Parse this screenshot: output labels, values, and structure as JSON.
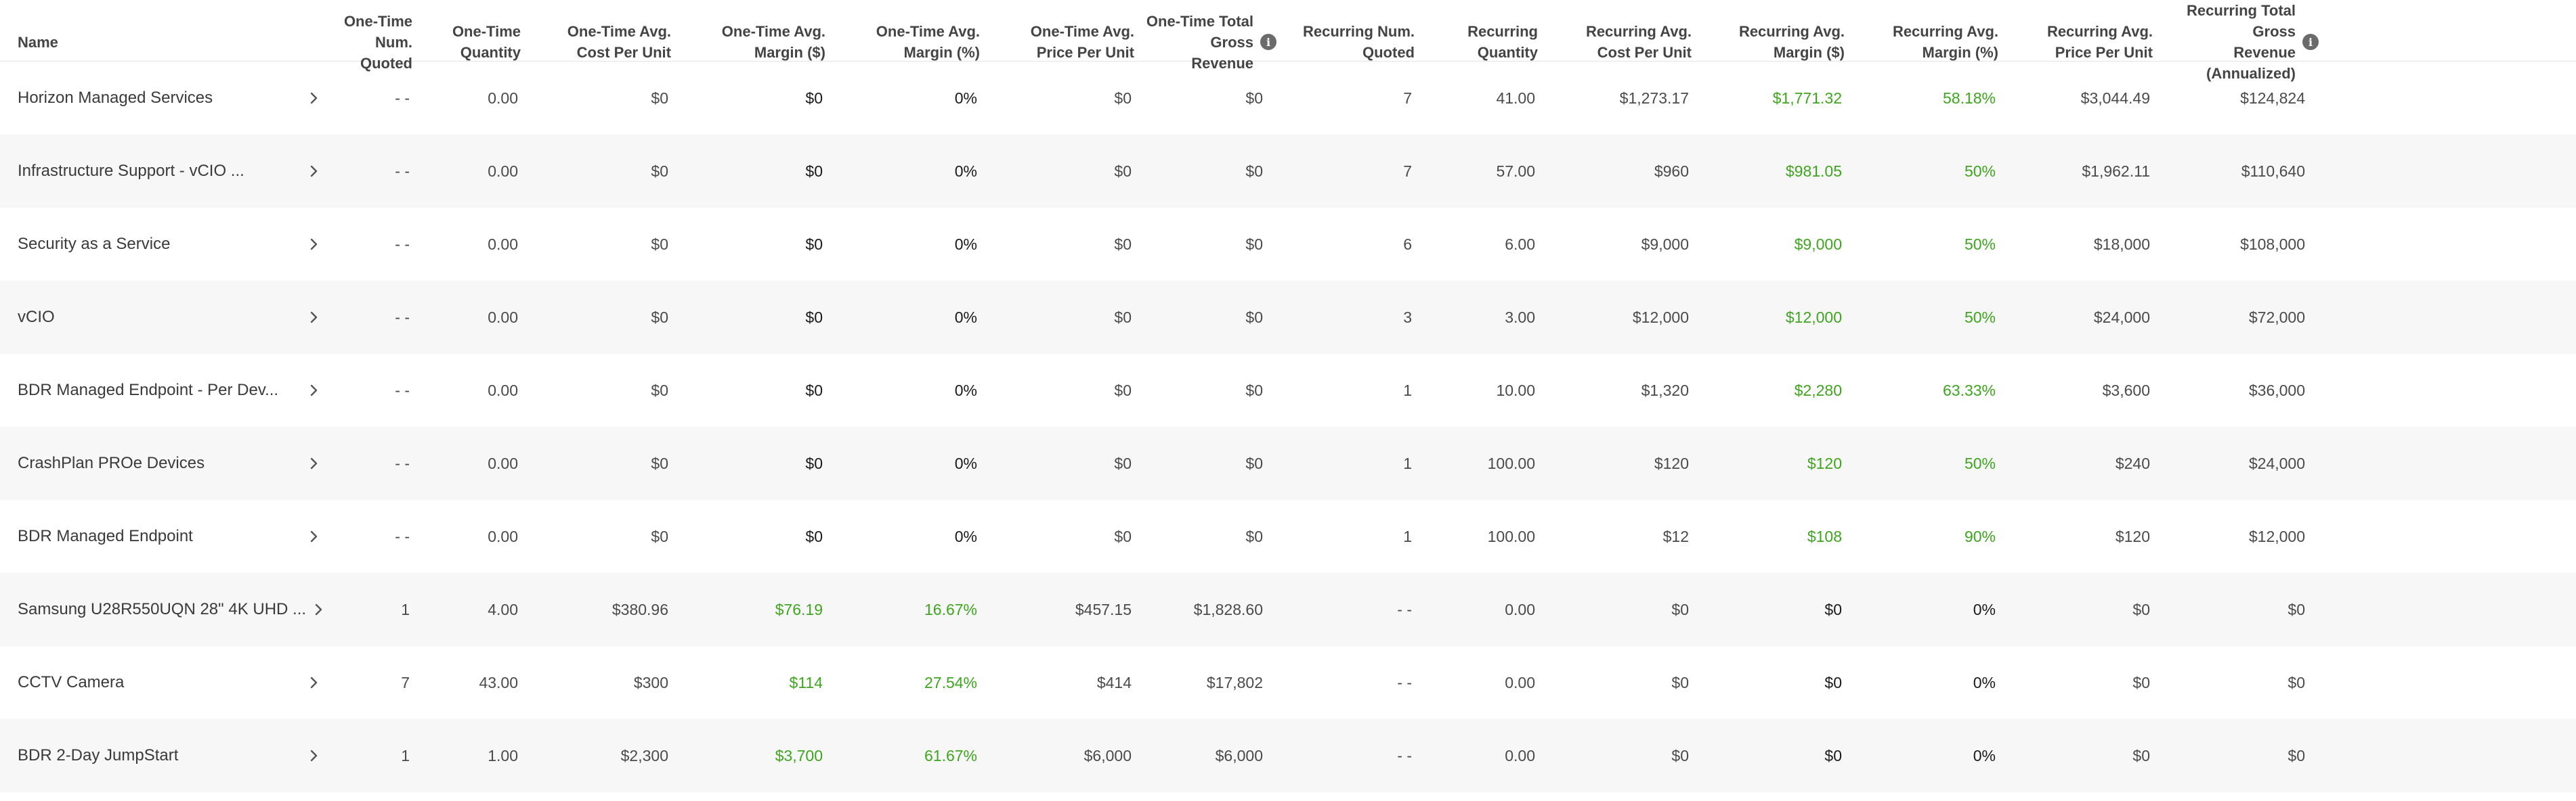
{
  "columns": [
    {
      "key": "name",
      "label": "Name",
      "info": false
    },
    {
      "key": "ot_num",
      "label": "One-Time Num. Quoted",
      "info": false
    },
    {
      "key": "ot_qty",
      "label": "One-Time Quantity",
      "info": false
    },
    {
      "key": "ot_cost",
      "label": "One-Time Avg. Cost Per Unit",
      "info": false
    },
    {
      "key": "ot_margin",
      "label": "One-Time Avg. Margin ($)",
      "info": false
    },
    {
      "key": "ot_margin_pct",
      "label": "One-Time Avg. Margin (%)",
      "info": false
    },
    {
      "key": "ot_price",
      "label": "One-Time Avg. Price Per Unit",
      "info": false
    },
    {
      "key": "ot_revenue",
      "label": "One-Time Total Gross Revenue",
      "info": true
    },
    {
      "key": "rc_num",
      "label": "Recurring Num. Quoted",
      "info": false
    },
    {
      "key": "rc_qty",
      "label": "Recurring Quantity",
      "info": false
    },
    {
      "key": "rc_cost",
      "label": "Recurring Avg. Cost Per Unit",
      "info": false
    },
    {
      "key": "rc_margin",
      "label": "Recurring Avg. Margin ($)",
      "info": false
    },
    {
      "key": "rc_margin_pct",
      "label": "Recurring Avg. Margin (%)",
      "info": false
    },
    {
      "key": "rc_price",
      "label": "Recurring Avg. Price Per Unit",
      "info": false
    },
    {
      "key": "rc_revenue",
      "label": "Recurring Total Gross Revenue (Annualized)",
      "info": true
    }
  ],
  "header_lines": [
    [
      "Name"
    ],
    [
      "One-Time Num.",
      "Quoted"
    ],
    [
      "One-Time",
      "Quantity"
    ],
    [
      "One-Time Avg.",
      "Cost Per Unit"
    ],
    [
      "One-Time Avg.",
      "Margin ($)"
    ],
    [
      "One-Time Avg.",
      "Margin (%)"
    ],
    [
      "One-Time Avg.",
      "Price Per Unit"
    ],
    [
      "One-Time Total",
      "Gross Revenue"
    ],
    [
      "Recurring Num.",
      "Quoted"
    ],
    [
      "Recurring",
      "Quantity"
    ],
    [
      "Recurring Avg.",
      "Cost Per Unit"
    ],
    [
      "Recurring Avg.",
      "Margin ($)"
    ],
    [
      "Recurring Avg.",
      "Margin (%)"
    ],
    [
      "Recurring Avg.",
      "Price Per Unit"
    ],
    [
      "Recurring Total Gross",
      "Revenue (Annualized)"
    ]
  ],
  "info_icon": "info-icon",
  "chevron_icon": "chevron-right-icon",
  "colors": {
    "positive": "#3fa520",
    "text": "#4a4a4a",
    "strong": "#1a1a1a",
    "alt_row": "#f7f7f7"
  },
  "rows": [
    {
      "name": "Horizon Managed Services",
      "ot_num": "- -",
      "ot_qty": "0.00",
      "ot_cost": "$0",
      "ot_margin": "$0",
      "ot_margin_pct": "0%",
      "ot_price": "$0",
      "ot_revenue": "$0",
      "rc_num": "7",
      "rc_qty": "41.00",
      "rc_cost": "$1,273.17",
      "rc_margin": "$1,771.32",
      "rc_margin_pct": "58.18%",
      "rc_price": "$3,044.49",
      "rc_revenue": "$124,824",
      "ot_positive": false,
      "rc_positive": true
    },
    {
      "name": "Infrastructure Support - vCIO ...",
      "ot_num": "- -",
      "ot_qty": "0.00",
      "ot_cost": "$0",
      "ot_margin": "$0",
      "ot_margin_pct": "0%",
      "ot_price": "$0",
      "ot_revenue": "$0",
      "rc_num": "7",
      "rc_qty": "57.00",
      "rc_cost": "$960",
      "rc_margin": "$981.05",
      "rc_margin_pct": "50%",
      "rc_price": "$1,962.11",
      "rc_revenue": "$110,640",
      "ot_positive": false,
      "rc_positive": true
    },
    {
      "name": "Security as a Service",
      "ot_num": "- -",
      "ot_qty": "0.00",
      "ot_cost": "$0",
      "ot_margin": "$0",
      "ot_margin_pct": "0%",
      "ot_price": "$0",
      "ot_revenue": "$0",
      "rc_num": "6",
      "rc_qty": "6.00",
      "rc_cost": "$9,000",
      "rc_margin": "$9,000",
      "rc_margin_pct": "50%",
      "rc_price": "$18,000",
      "rc_revenue": "$108,000",
      "ot_positive": false,
      "rc_positive": true
    },
    {
      "name": "vCIO",
      "ot_num": "- -",
      "ot_qty": "0.00",
      "ot_cost": "$0",
      "ot_margin": "$0",
      "ot_margin_pct": "0%",
      "ot_price": "$0",
      "ot_revenue": "$0",
      "rc_num": "3",
      "rc_qty": "3.00",
      "rc_cost": "$12,000",
      "rc_margin": "$12,000",
      "rc_margin_pct": "50%",
      "rc_price": "$24,000",
      "rc_revenue": "$72,000",
      "ot_positive": false,
      "rc_positive": true
    },
    {
      "name": "BDR Managed Endpoint - Per Dev...",
      "ot_num": "- -",
      "ot_qty": "0.00",
      "ot_cost": "$0",
      "ot_margin": "$0",
      "ot_margin_pct": "0%",
      "ot_price": "$0",
      "ot_revenue": "$0",
      "rc_num": "1",
      "rc_qty": "10.00",
      "rc_cost": "$1,320",
      "rc_margin": "$2,280",
      "rc_margin_pct": "63.33%",
      "rc_price": "$3,600",
      "rc_revenue": "$36,000",
      "ot_positive": false,
      "rc_positive": true
    },
    {
      "name": "CrashPlan PROe Devices",
      "ot_num": "- -",
      "ot_qty": "0.00",
      "ot_cost": "$0",
      "ot_margin": "$0",
      "ot_margin_pct": "0%",
      "ot_price": "$0",
      "ot_revenue": "$0",
      "rc_num": "1",
      "rc_qty": "100.00",
      "rc_cost": "$120",
      "rc_margin": "$120",
      "rc_margin_pct": "50%",
      "rc_price": "$240",
      "rc_revenue": "$24,000",
      "ot_positive": false,
      "rc_positive": true
    },
    {
      "name": "BDR Managed Endpoint",
      "ot_num": "- -",
      "ot_qty": "0.00",
      "ot_cost": "$0",
      "ot_margin": "$0",
      "ot_margin_pct": "0%",
      "ot_price": "$0",
      "ot_revenue": "$0",
      "rc_num": "1",
      "rc_qty": "100.00",
      "rc_cost": "$12",
      "rc_margin": "$108",
      "rc_margin_pct": "90%",
      "rc_price": "$120",
      "rc_revenue": "$12,000",
      "ot_positive": false,
      "rc_positive": true
    },
    {
      "name": "Samsung U28R550UQN 28\" 4K UHD ...",
      "ot_num": "1",
      "ot_qty": "4.00",
      "ot_cost": "$380.96",
      "ot_margin": "$76.19",
      "ot_margin_pct": "16.67%",
      "ot_price": "$457.15",
      "ot_revenue": "$1,828.60",
      "rc_num": "- -",
      "rc_qty": "0.00",
      "rc_cost": "$0",
      "rc_margin": "$0",
      "rc_margin_pct": "0%",
      "rc_price": "$0",
      "rc_revenue": "$0",
      "ot_positive": true,
      "rc_positive": false
    },
    {
      "name": "CCTV Camera",
      "ot_num": "7",
      "ot_qty": "43.00",
      "ot_cost": "$300",
      "ot_margin": "$114",
      "ot_margin_pct": "27.54%",
      "ot_price": "$414",
      "ot_revenue": "$17,802",
      "rc_num": "- -",
      "rc_qty": "0.00",
      "rc_cost": "$0",
      "rc_margin": "$0",
      "rc_margin_pct": "0%",
      "rc_price": "$0",
      "rc_revenue": "$0",
      "ot_positive": true,
      "rc_positive": false
    },
    {
      "name": "BDR 2-Day JumpStart",
      "ot_num": "1",
      "ot_qty": "1.00",
      "ot_cost": "$2,300",
      "ot_margin": "$3,700",
      "ot_margin_pct": "61.67%",
      "ot_price": "$6,000",
      "ot_revenue": "$6,000",
      "rc_num": "- -",
      "rc_qty": "0.00",
      "rc_cost": "$0",
      "rc_margin": "$0",
      "rc_margin_pct": "0%",
      "rc_price": "$0",
      "rc_revenue": "$0",
      "ot_positive": true,
      "rc_positive": false
    }
  ]
}
